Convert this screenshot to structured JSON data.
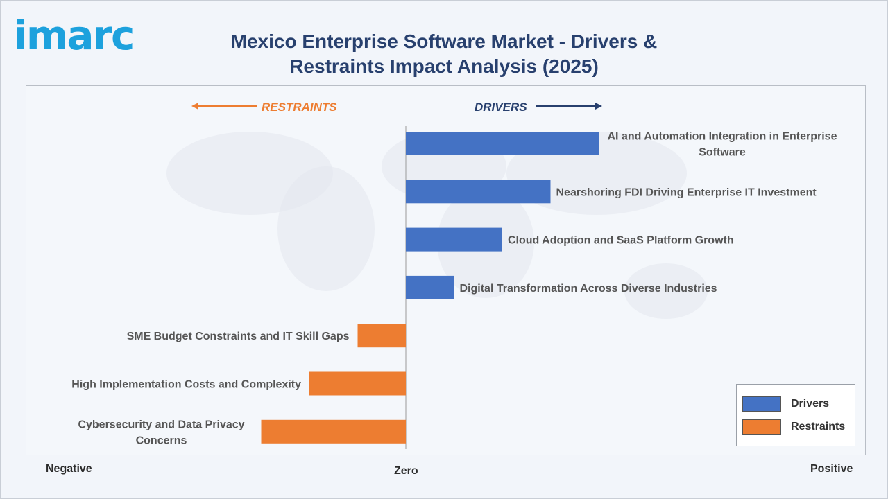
{
  "header": {
    "logo_text": "imarc",
    "title": "Mexico Enterprise Software Market - Drivers & Restraints Impact Analysis (2025)"
  },
  "colors": {
    "drivers": "#4472c4",
    "restraints": "#ed7d31",
    "title": "#28406e",
    "logo": "#1da1dd"
  },
  "chart_data": {
    "type": "bar",
    "orientation": "horizontal",
    "title": "Mexico Enterprise Software Market - Drivers & Restraints Impact Analysis (2025)",
    "xlabel_negative": "Negative",
    "xlabel_zero": "Zero",
    "xlabel_positive": "Positive",
    "direction_left": "RESTRAINTS",
    "direction_right": "DRIVERS",
    "xlim": [
      -5,
      5
    ],
    "legend_position": "bottom-right",
    "series": [
      {
        "name": "Drivers",
        "color": "#4472c4"
      },
      {
        "name": "Restraints",
        "color": "#ed7d31"
      }
    ],
    "categories": [
      {
        "label": "AI and Automation Integration in Enterprise Software",
        "lines": [
          "AI and Automation Integration in Enterprise",
          "Software"
        ],
        "value": 5,
        "series": "Drivers"
      },
      {
        "label": "Nearshoring FDI Driving Enterprise IT Investment",
        "lines": [
          "Nearshoring FDI Driving Enterprise IT Investment"
        ],
        "value": 3.75,
        "series": "Drivers"
      },
      {
        "label": "Cloud Adoption and SaaS Platform Growth",
        "lines": [
          "Cloud Adoption and SaaS Platform Growth"
        ],
        "value": 2.5,
        "series": "Drivers"
      },
      {
        "label": "Digital Transformation Across Diverse Industries",
        "lines": [
          "Digital Transformation Across Diverse Industries"
        ],
        "value": 1.25,
        "series": "Drivers"
      },
      {
        "label": "SME Budget Constraints and IT Skill Gaps",
        "lines": [
          "SME Budget Constraints and IT Skill Gaps"
        ],
        "value": -1.25,
        "series": "Restraints"
      },
      {
        "label": "High Implementation Costs and Complexity",
        "lines": [
          "High Implementation Costs and Complexity"
        ],
        "value": -2.5,
        "series": "Restraints"
      },
      {
        "label": "Cybersecurity and Data Privacy Concerns",
        "lines": [
          "Cybersecurity and Data Privacy",
          "Concerns"
        ],
        "value": -3.75,
        "series": "Restraints"
      }
    ]
  }
}
